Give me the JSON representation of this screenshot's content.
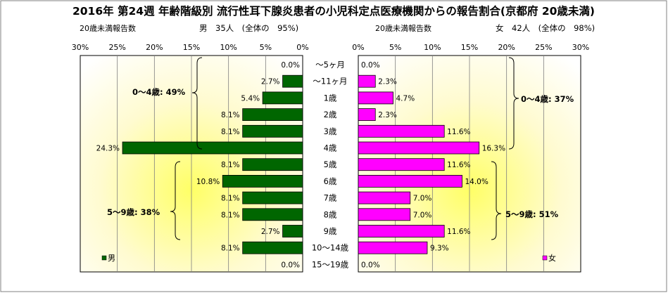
{
  "title": "2016年 第24週 年齢階級別 流行性耳下腺炎患者の小児科定点医療機関からの報告割合(京都府 20歳未満)",
  "male_header": {
    "caption": "20歳未満報告数",
    "summary": "男　35人　(全体の　95%)"
  },
  "female_header": {
    "caption": "20歳未満報告数",
    "summary": "女　42人　(全体の　98%)"
  },
  "annotations": {
    "male_0_4": "0～4歳: 49%",
    "male_5_9": "5～9歳: 38%",
    "female_0_4": "0～4歳: 37%",
    "female_5_9": "5～9歳: 51%"
  },
  "legend": {
    "male": "男",
    "female": "女"
  },
  "colors": {
    "male": "#006600",
    "female": "#ff00ff",
    "plot_glow": "#ffff66"
  },
  "chart_data": {
    "type": "bar",
    "orientation": "horizontal-population-pyramid",
    "categories": [
      "～5ヶ月",
      "～11ヶ月",
      "1歳",
      "2歳",
      "3歳",
      "4歳",
      "5歳",
      "6歳",
      "7歳",
      "8歳",
      "9歳",
      "10～14歳",
      "15～19歳"
    ],
    "series": [
      {
        "name": "男",
        "values": [
          0.0,
          2.7,
          5.4,
          8.1,
          8.1,
          24.3,
          8.1,
          10.8,
          8.1,
          8.1,
          2.7,
          8.1,
          0.0
        ],
        "labels": [
          "0.0%",
          "2.7%",
          "5.4%",
          "8.1%",
          "8.1%",
          "24.3%",
          "8.1%",
          "10.8%",
          "8.1%",
          "8.1%",
          "2.7%",
          "8.1%",
          "0.0%"
        ]
      },
      {
        "name": "女",
        "values": [
          0.0,
          2.3,
          4.7,
          2.3,
          11.6,
          16.3,
          11.6,
          14.0,
          7.0,
          7.0,
          11.6,
          9.3,
          0.0
        ],
        "labels": [
          "0.0%",
          "2.3%",
          "4.7%",
          "2.3%",
          "11.6%",
          "16.3%",
          "11.6%",
          "14.0%",
          "7.0%",
          "7.0%",
          "11.6%",
          "9.3%",
          "0.0%"
        ]
      }
    ],
    "x_ticks_male": [
      "30%",
      "25%",
      "20%",
      "15%",
      "10%",
      "5%",
      "0%"
    ],
    "x_ticks_female": [
      "0%",
      "5%",
      "10%",
      "15%",
      "20%",
      "25%",
      "30%"
    ],
    "xlim": [
      0,
      30
    ],
    "grid": "vertical"
  }
}
